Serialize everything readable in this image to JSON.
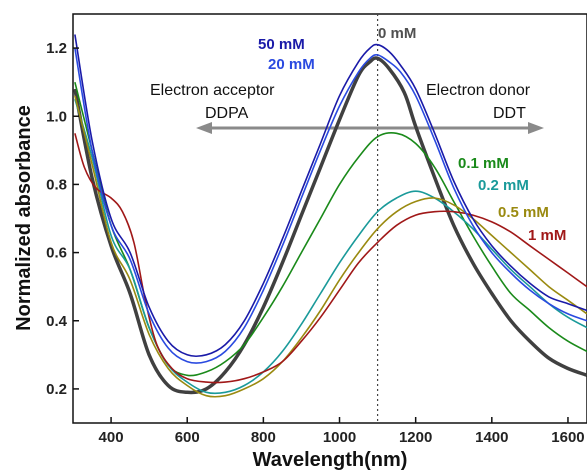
{
  "chart_data": {
    "type": "line",
    "xlabel": "Wavelength(nm)",
    "ylabel": "Normalized absorbance",
    "xlim": [
      300,
      1650
    ],
    "ylim": [
      0.1,
      1.3
    ],
    "xticks": [
      400,
      600,
      800,
      1000,
      1200,
      1400,
      1600
    ],
    "yticks": [
      0.2,
      0.4,
      0.6,
      0.8,
      1.0,
      1.2
    ],
    "xtick_labels": [
      "400",
      "600",
      "800",
      "1000",
      "1200",
      "1400",
      "1600"
    ],
    "ytick_labels": [
      "0.2",
      "0.4",
      "0.6",
      "0.8",
      "1.0",
      "1.2"
    ],
    "grid": false,
    "reference_line": {
      "x": 1100,
      "style": "dotted"
    },
    "annotations": {
      "acceptor_line1": "Electron   acceptor",
      "acceptor_line2": "DDPA",
      "donor_line1": "Electron  donor",
      "donor_line2": "DDT"
    },
    "series": [
      {
        "name": "0 mM",
        "color": "#404040",
        "x": [
          305,
          350,
          400,
          450,
          500,
          550,
          600,
          650,
          700,
          750,
          800,
          850,
          900,
          950,
          1000,
          1050,
          1080,
          1100,
          1130,
          1170,
          1200,
          1250,
          1300,
          1350,
          1400,
          1450,
          1500,
          1550,
          1600,
          1650
        ],
        "y": [
          1.08,
          0.82,
          0.62,
          0.48,
          0.3,
          0.21,
          0.19,
          0.2,
          0.25,
          0.33,
          0.44,
          0.57,
          0.71,
          0.85,
          0.99,
          1.12,
          1.16,
          1.17,
          1.14,
          1.07,
          0.97,
          0.82,
          0.68,
          0.57,
          0.48,
          0.4,
          0.34,
          0.29,
          0.26,
          0.24
        ]
      },
      {
        "name": "0.1 mM",
        "color": "#1a8a1a",
        "x": [
          305,
          350,
          400,
          450,
          500,
          550,
          600,
          650,
          700,
          750,
          800,
          850,
          900,
          950,
          1000,
          1050,
          1100,
          1150,
          1200,
          1250,
          1300,
          1350,
          1400,
          1450,
          1500,
          1550,
          1600,
          1650
        ],
        "y": [
          1.1,
          0.9,
          0.68,
          0.55,
          0.38,
          0.27,
          0.24,
          0.25,
          0.28,
          0.33,
          0.41,
          0.5,
          0.6,
          0.7,
          0.8,
          0.88,
          0.94,
          0.95,
          0.92,
          0.85,
          0.75,
          0.65,
          0.56,
          0.48,
          0.43,
          0.38,
          0.34,
          0.31
        ]
      },
      {
        "name": "0.2 mM",
        "color": "#1a9a9a",
        "x": [
          305,
          350,
          400,
          450,
          500,
          550,
          600,
          650,
          700,
          750,
          800,
          850,
          900,
          950,
          1000,
          1050,
          1100,
          1150,
          1200,
          1250,
          1300,
          1350,
          1400,
          1450,
          1500,
          1550,
          1600,
          1650
        ],
        "y": [
          1.05,
          0.88,
          0.65,
          0.55,
          0.38,
          0.27,
          0.22,
          0.19,
          0.19,
          0.21,
          0.25,
          0.31,
          0.39,
          0.48,
          0.57,
          0.65,
          0.72,
          0.76,
          0.78,
          0.76,
          0.72,
          0.67,
          0.61,
          0.55,
          0.5,
          0.45,
          0.41,
          0.38
        ]
      },
      {
        "name": "0.5 mM",
        "color": "#9a8a10",
        "x": [
          305,
          350,
          400,
          450,
          500,
          550,
          600,
          650,
          700,
          750,
          800,
          850,
          900,
          950,
          1000,
          1050,
          1100,
          1150,
          1200,
          1250,
          1300,
          1350,
          1400,
          1450,
          1500,
          1550,
          1600,
          1650
        ],
        "y": [
          1.06,
          0.86,
          0.63,
          0.52,
          0.36,
          0.26,
          0.21,
          0.18,
          0.18,
          0.2,
          0.23,
          0.28,
          0.35,
          0.43,
          0.52,
          0.6,
          0.67,
          0.72,
          0.75,
          0.76,
          0.74,
          0.7,
          0.65,
          0.6,
          0.55,
          0.5,
          0.46,
          0.42
        ]
      },
      {
        "name": "1 mM",
        "color": "#a01818",
        "x": [
          305,
          330,
          360,
          400,
          430,
          460,
          490,
          520,
          560,
          600,
          650,
          700,
          750,
          800,
          850,
          900,
          950,
          1000,
          1050,
          1100,
          1150,
          1200,
          1250,
          1300,
          1350,
          1400,
          1450,
          1500,
          1550,
          1600,
          1650
        ],
        "y": [
          0.95,
          0.85,
          0.79,
          0.76,
          0.72,
          0.63,
          0.46,
          0.33,
          0.26,
          0.23,
          0.22,
          0.22,
          0.23,
          0.25,
          0.28,
          0.34,
          0.41,
          0.49,
          0.57,
          0.63,
          0.68,
          0.71,
          0.72,
          0.72,
          0.71,
          0.69,
          0.66,
          0.62,
          0.58,
          0.54,
          0.5
        ]
      },
      {
        "name": "20 mM",
        "color": "#2a4ae0",
        "x": [
          305,
          350,
          400,
          450,
          500,
          550,
          600,
          650,
          700,
          750,
          800,
          850,
          900,
          950,
          1000,
          1050,
          1080,
          1100,
          1130,
          1160,
          1200,
          1250,
          1300,
          1350,
          1400,
          1450,
          1500,
          1550,
          1600,
          1650
        ],
        "y": [
          1.2,
          0.9,
          0.68,
          0.58,
          0.42,
          0.32,
          0.28,
          0.28,
          0.31,
          0.38,
          0.49,
          0.62,
          0.76,
          0.9,
          1.03,
          1.13,
          1.17,
          1.18,
          1.16,
          1.13,
          1.06,
          0.93,
          0.79,
          0.68,
          0.6,
          0.54,
          0.49,
          0.45,
          0.42,
          0.4
        ]
      },
      {
        "name": "50 mM",
        "color": "#1a1aa8",
        "x": [
          305,
          350,
          400,
          450,
          500,
          550,
          600,
          650,
          700,
          750,
          800,
          850,
          900,
          950,
          1000,
          1050,
          1080,
          1100,
          1130,
          1160,
          1200,
          1250,
          1300,
          1350,
          1400,
          1450,
          1500,
          1550,
          1600,
          1650
        ],
        "y": [
          1.24,
          0.93,
          0.7,
          0.6,
          0.44,
          0.34,
          0.3,
          0.3,
          0.33,
          0.4,
          0.51,
          0.64,
          0.78,
          0.92,
          1.06,
          1.16,
          1.2,
          1.21,
          1.19,
          1.15,
          1.08,
          0.95,
          0.81,
          0.7,
          0.62,
          0.56,
          0.51,
          0.47,
          0.45,
          0.43
        ]
      }
    ],
    "series_labels": [
      {
        "text": "50 mM",
        "color": "#1a1aa8"
      },
      {
        "text": "20 mM",
        "color": "#2a4ae0"
      },
      {
        "text": "0 mM",
        "color": "#505050"
      },
      {
        "text": "0.1 mM",
        "color": "#1a8a1a"
      },
      {
        "text": "0.2 mM",
        "color": "#1a9a9a"
      },
      {
        "text": "0.5 mM",
        "color": "#9a8a10"
      },
      {
        "text": "1 mM",
        "color": "#a01818"
      }
    ]
  }
}
